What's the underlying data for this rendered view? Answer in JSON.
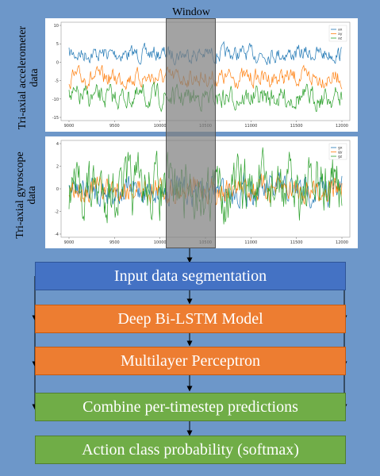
{
  "window_label": "Window",
  "accel": {
    "ylabel_line1": "Tri-axial accelerometer",
    "ylabel_line2": "data",
    "legend": [
      "ax",
      "ay",
      "az"
    ],
    "yticks": [
      "10",
      "5",
      "0",
      "-5",
      "-10",
      "-15"
    ],
    "xticks": [
      "9000",
      "9500",
      "10000",
      "10500",
      "11000",
      "11500",
      "12000"
    ]
  },
  "gyro": {
    "ylabel_line1": "Tri-axial gyroscope",
    "ylabel_line2": "data",
    "legend": [
      "gx",
      "gy",
      "gz"
    ],
    "yticks": [
      "4",
      "2",
      "0",
      "-2",
      "-4"
    ],
    "xticks": [
      "9000",
      "9500",
      "10000",
      "10500",
      "11000",
      "11500",
      "12000"
    ]
  },
  "series_colors": [
    "#1f77b4",
    "#ff7f0e",
    "#2ca02c"
  ],
  "colors": {
    "background": "#6d97c9",
    "blue": "#4472c4",
    "orange": "#ed7d31",
    "green": "#70ad47"
  },
  "pipeline": [
    "Input data segmentation",
    "Deep Bi-LSTM Model",
    "Multilayer Perceptron",
    "Combine per-timestep predictions",
    "Action class probability (softmax)"
  ]
}
